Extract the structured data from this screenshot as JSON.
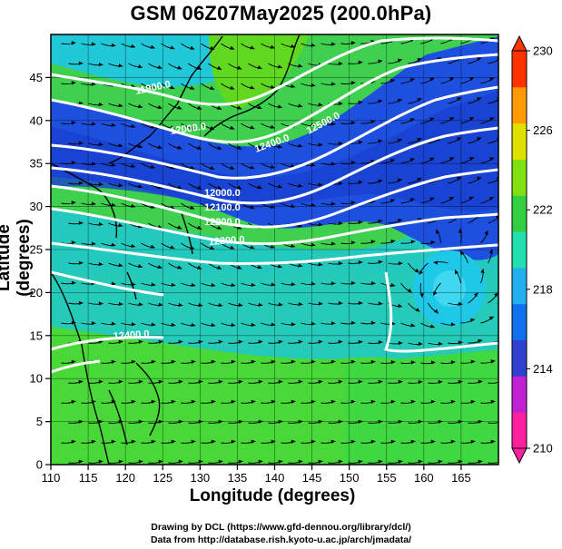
{
  "title": "GSM 06Z07May2025 (200.0hPa)",
  "x_axis": {
    "label": "Longitude (degrees)",
    "range": [
      110,
      170
    ],
    "tick_labels": [
      "110",
      "115",
      "120",
      "125",
      "130",
      "135",
      "140",
      "145",
      "150",
      "155",
      "160",
      "165"
    ]
  },
  "y_axis": {
    "label": "Latitude  (degrees)",
    "range": [
      0,
      50
    ],
    "tick_labels": [
      "0",
      "5",
      "10",
      "15",
      "20",
      "25",
      "30",
      "35",
      "40",
      "45"
    ]
  },
  "colorbar": {
    "range": [
      210,
      230
    ],
    "tick_labels": [
      "230",
      "226",
      "222",
      "218",
      "214",
      "210"
    ],
    "colors": [
      "#ff20a0",
      "#c020d0",
      "#3040d0",
      "#1070f0",
      "#20b0f0",
      "#20e0b0",
      "#30d040",
      "#80e010",
      "#e0e000",
      "#ff9900",
      "#ff3300"
    ]
  },
  "contours": {
    "labels": [
      "11900.0",
      "12000.0",
      "12100.0",
      "12200.0",
      "12300.0",
      "12400.0",
      "12500.0"
    ]
  },
  "credits": {
    "line1": "Drawing by DCL (https://www.gfd-dennou.org/library/dcl/)",
    "line2": "Data from http://database.rish.kyoto-u.ac.jp/arch/jmadata/"
  }
}
